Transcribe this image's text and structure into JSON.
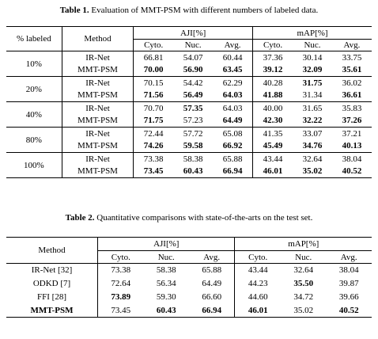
{
  "table1": {
    "caption_label": "Table 1.",
    "caption_text": " Evaluation of MMT-PSM with different numbers of labeled data.",
    "col_labeled": "% labeled",
    "col_method": "Method",
    "group_aji": "AJI[%]",
    "group_map": "mAP[%]",
    "sub": [
      "Cyto.",
      "Nuc.",
      "Avg.",
      "Cyto.",
      "Nuc.",
      "Avg."
    ],
    "groups": [
      {
        "label": "10%",
        "rows": [
          {
            "method": "IR-Net",
            "values": [
              "66.81",
              "54.07",
              "60.44",
              "37.36",
              "30.14",
              "33.75"
            ],
            "bold": [
              false,
              false,
              false,
              false,
              false,
              false
            ]
          },
          {
            "method": "MMT-PSM",
            "values": [
              "70.00",
              "56.90",
              "63.45",
              "39.12",
              "32.09",
              "35.61"
            ],
            "bold": [
              true,
              true,
              true,
              true,
              true,
              true
            ]
          }
        ]
      },
      {
        "label": "20%",
        "rows": [
          {
            "method": "IR-Net",
            "values": [
              "70.15",
              "54.42",
              "62.29",
              "40.28",
              "31.75",
              "36.02"
            ],
            "bold": [
              false,
              false,
              false,
              false,
              true,
              false
            ]
          },
          {
            "method": "MMT-PSM",
            "values": [
              "71.56",
              "56.49",
              "64.03",
              "41.88",
              "31.34",
              "36.61"
            ],
            "bold": [
              true,
              true,
              true,
              true,
              false,
              true
            ]
          }
        ]
      },
      {
        "label": "40%",
        "rows": [
          {
            "method": "IR-Net",
            "values": [
              "70.70",
              "57.35",
              "64.03",
              "40.00",
              "31.65",
              "35.83"
            ],
            "bold": [
              false,
              true,
              false,
              false,
              false,
              false
            ]
          },
          {
            "method": "MMT-PSM",
            "values": [
              "71.75",
              "57.23",
              "64.49",
              "42.30",
              "32.22",
              "37.26"
            ],
            "bold": [
              true,
              false,
              true,
              true,
              true,
              true
            ]
          }
        ]
      },
      {
        "label": "80%",
        "rows": [
          {
            "method": "IR-Net",
            "values": [
              "72.44",
              "57.72",
              "65.08",
              "41.35",
              "33.07",
              "37.21"
            ],
            "bold": [
              false,
              false,
              false,
              false,
              false,
              false
            ]
          },
          {
            "method": "MMT-PSM",
            "values": [
              "74.26",
              "59.58",
              "66.92",
              "45.49",
              "34.76",
              "40.13"
            ],
            "bold": [
              true,
              true,
              true,
              true,
              true,
              true
            ]
          }
        ]
      },
      {
        "label": "100%",
        "rows": [
          {
            "method": "IR-Net",
            "values": [
              "73.38",
              "58.38",
              "65.88",
              "43.44",
              "32.64",
              "38.04"
            ],
            "bold": [
              false,
              false,
              false,
              false,
              false,
              false
            ]
          },
          {
            "method": "MMT-PSM",
            "values": [
              "73.45",
              "60.43",
              "66.94",
              "46.01",
              "35.02",
              "40.52"
            ],
            "bold": [
              true,
              true,
              true,
              true,
              true,
              true
            ]
          }
        ]
      }
    ]
  },
  "table2": {
    "caption_label": "Table 2.",
    "caption_text": " Quantitative comparisons with state-of-the-arts on the test set.",
    "col_method": "Method",
    "group_aji": "AJI[%]",
    "group_map": "mAP[%]",
    "sub": [
      "Cyto.",
      "Nuc.",
      "Avg.",
      "Cyto.",
      "Nuc.",
      "Avg."
    ],
    "rows": [
      {
        "method": "IR-Net [32]",
        "method_bold": false,
        "values": [
          "73.38",
          "58.38",
          "65.88",
          "43.44",
          "32.64",
          "38.04"
        ],
        "bold": [
          false,
          false,
          false,
          false,
          false,
          false
        ]
      },
      {
        "method": "ODKD [7]",
        "method_bold": false,
        "values": [
          "72.64",
          "56.34",
          "64.49",
          "44.23",
          "35.50",
          "39.87"
        ],
        "bold": [
          false,
          false,
          false,
          false,
          true,
          false
        ]
      },
      {
        "method": "FFI [28]",
        "method_bold": false,
        "values": [
          "73.89",
          "59.30",
          "66.60",
          "44.60",
          "34.72",
          "39.66"
        ],
        "bold": [
          true,
          false,
          false,
          false,
          false,
          false
        ]
      },
      {
        "method": "MMT-PSM",
        "method_bold": true,
        "values": [
          "73.45",
          "60.43",
          "66.94",
          "46.01",
          "35.02",
          "40.52"
        ],
        "bold": [
          false,
          true,
          true,
          true,
          false,
          true
        ]
      }
    ]
  }
}
